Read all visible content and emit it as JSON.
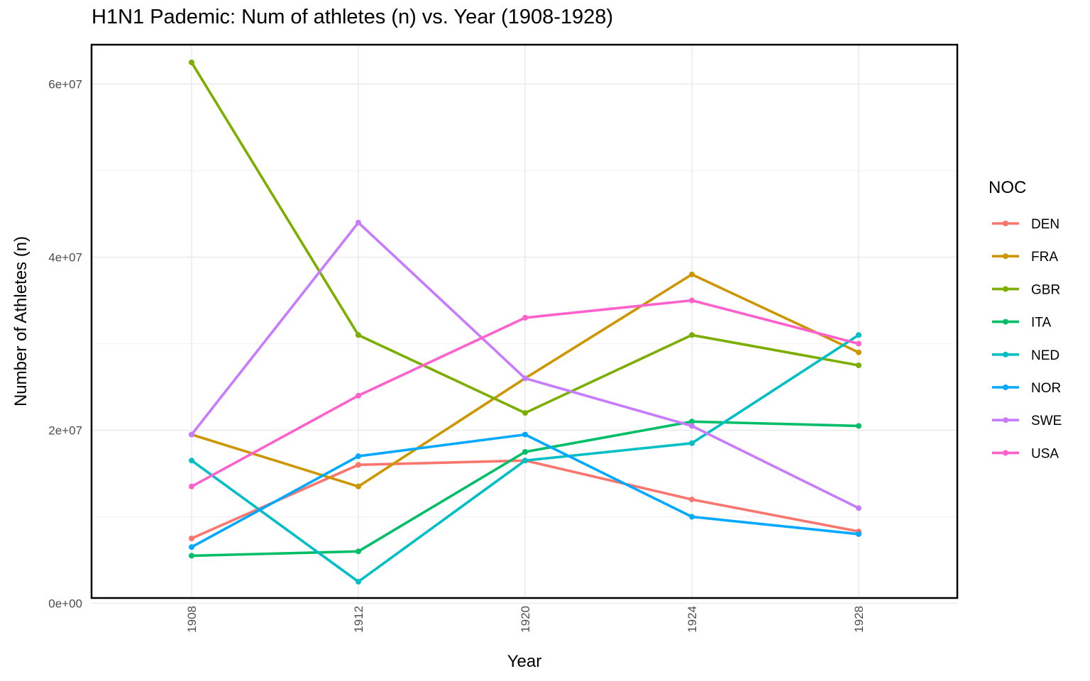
{
  "chart_data": {
    "type": "line",
    "title": "H1N1 Pademic: Num of athletes (n) vs. Year (1908-1928)",
    "xlabel": "Year",
    "ylabel": "Number of Athletes (n)",
    "x": [
      "1908",
      "1912",
      "1920",
      "1924",
      "1928"
    ],
    "ylim": [
      0,
      65000000
    ],
    "y_ticks": [
      0,
      20000000,
      40000000,
      60000000
    ],
    "y_tick_labels": [
      "0e+00",
      "2e+07",
      "4e+07",
      "6e+07"
    ],
    "grid": true,
    "legend_title": "NOC",
    "legend_position": "right",
    "series": [
      {
        "name": "DEN",
        "color": "#F8766D",
        "values": [
          7500000,
          16000000,
          16500000,
          12000000,
          8300000
        ]
      },
      {
        "name": "FRA",
        "color": "#CD9600",
        "values": [
          19500000,
          13500000,
          26000000,
          38000000,
          29000000
        ]
      },
      {
        "name": "GBR",
        "color": "#7CAE00",
        "values": [
          62500000,
          31000000,
          22000000,
          31000000,
          27500000
        ]
      },
      {
        "name": "ITA",
        "color": "#00BE67",
        "values": [
          5500000,
          6000000,
          17500000,
          21000000,
          20500000
        ]
      },
      {
        "name": "NED",
        "color": "#00BFC4",
        "values": [
          16500000,
          2500000,
          16500000,
          18500000,
          31000000
        ]
      },
      {
        "name": "NOR",
        "color": "#00A9FF",
        "values": [
          6500000,
          17000000,
          19500000,
          10000000,
          8000000
        ]
      },
      {
        "name": "SWE",
        "color": "#C77CFF",
        "values": [
          19500000,
          44000000,
          26000000,
          20500000,
          11000000
        ]
      },
      {
        "name": "USA",
        "color": "#FF61CC",
        "values": [
          13500000,
          24000000,
          33000000,
          35000000,
          30000000
        ]
      }
    ]
  }
}
